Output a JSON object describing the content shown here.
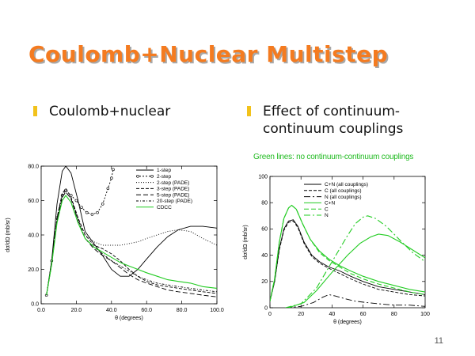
{
  "slide": {
    "title": "Coulomb+Nuclear Multistep",
    "bullet_left": "Coulomb+nuclear",
    "bullet_right": "Effect of continuum-continuum couplings",
    "note": "Green lines: no continuum-continuum couplings",
    "page_number": "11",
    "colors": {
      "title": "#f47b20",
      "bullet": "#f2c21b",
      "green": "#22cc22"
    }
  },
  "chart_data": [
    {
      "type": "line",
      "xlabel": "θ (degrees)",
      "ylabel": "dσ/dΩ (mb/sr)",
      "xlim": [
        0,
        100
      ],
      "ylim": [
        0,
        80
      ],
      "xticks": [
        "0.0",
        "20.0",
        "40.0",
        "60.0",
        "80.0",
        "100.0"
      ],
      "yticks": [
        "0.0",
        "20.0",
        "40.0",
        "60.0",
        "80.0"
      ],
      "series": [
        {
          "name": "1-step",
          "color": "#000000",
          "dash": "",
          "points": [
            [
              3,
              5
            ],
            [
              6,
              25
            ],
            [
              9,
              58
            ],
            [
              12,
              77
            ],
            [
              14,
              80
            ],
            [
              17,
              76
            ],
            [
              21,
              60
            ],
            [
              25,
              42
            ],
            [
              30,
              35
            ],
            [
              35,
              28
            ],
            [
              40,
              20
            ],
            [
              45,
              16
            ],
            [
              50,
              16
            ],
            [
              55,
              20
            ],
            [
              60,
              26
            ],
            [
              66,
              33
            ],
            [
              72,
              39
            ],
            [
              78,
              43
            ],
            [
              85,
              45
            ],
            [
              92,
              45
            ],
            [
              100,
              44
            ]
          ]
        },
        {
          "name": "2-step",
          "color": "#000000",
          "dash": "2,2",
          "markers": true,
          "points": [
            [
              3,
              5
            ],
            [
              6,
              25
            ],
            [
              9,
              50
            ],
            [
              12,
              63
            ],
            [
              14,
              66
            ],
            [
              17,
              63
            ],
            [
              20,
              60
            ],
            [
              23,
              56
            ],
            [
              26,
              53
            ],
            [
              29,
              52
            ],
            [
              32,
              53
            ],
            [
              35,
              58
            ],
            [
              38,
              67
            ],
            [
              40,
              73
            ],
            [
              41,
              78
            ]
          ]
        },
        {
          "name": "2-step (PADE)",
          "color": "#000000",
          "dash": "1,2",
          "points": [
            [
              3,
              5
            ],
            [
              6,
              24
            ],
            [
              9,
              50
            ],
            [
              12,
              64
            ],
            [
              14,
              67
            ],
            [
              17,
              62
            ],
            [
              21,
              50
            ],
            [
              25,
              40
            ],
            [
              30,
              36
            ],
            [
              35,
              34
            ],
            [
              40,
              34
            ],
            [
              45,
              34
            ],
            [
              50,
              35
            ],
            [
              55,
              36
            ],
            [
              60,
              38
            ],
            [
              66,
              40
            ],
            [
              72,
              42
            ],
            [
              78,
              43
            ],
            [
              85,
              42
            ],
            [
              92,
              38
            ],
            [
              100,
              34
            ]
          ]
        },
        {
          "name": "3-step (PADE)",
          "color": "#000000",
          "dash": "4,2",
          "points": [
            [
              3,
              5
            ],
            [
              6,
              24
            ],
            [
              9,
              50
            ],
            [
              12,
              64
            ],
            [
              14,
              67
            ],
            [
              17,
              62
            ],
            [
              21,
              50
            ],
            [
              25,
              40
            ],
            [
              30,
              34
            ],
            [
              35,
              32
            ],
            [
              40,
              29
            ],
            [
              45,
              25
            ],
            [
              50,
              20
            ],
            [
              55,
              16
            ],
            [
              60,
              13
            ],
            [
              66,
              11
            ],
            [
              72,
              10
            ],
            [
              78,
              9
            ],
            [
              85,
              8
            ],
            [
              92,
              7
            ],
            [
              100,
              6
            ]
          ]
        },
        {
          "name": "5-step (PADE)",
          "color": "#000000",
          "dash": "6,3",
          "points": [
            [
              3,
              5
            ],
            [
              6,
              23
            ],
            [
              9,
              48
            ],
            [
              12,
              62
            ],
            [
              14,
              65
            ],
            [
              17,
              61
            ],
            [
              21,
              48
            ],
            [
              25,
              38
            ],
            [
              30,
              32
            ],
            [
              35,
              28
            ],
            [
              40,
              25
            ],
            [
              45,
              21
            ],
            [
              50,
              17
            ],
            [
              55,
              14
            ],
            [
              60,
              12
            ],
            [
              66,
              10
            ],
            [
              72,
              8
            ],
            [
              78,
              7
            ],
            [
              85,
              6
            ],
            [
              92,
              5
            ],
            [
              100,
              4
            ]
          ]
        },
        {
          "name": "20-step (PADE)",
          "color": "#000000",
          "dash": "3,2,1,2",
          "points": [
            [
              3,
              5
            ],
            [
              6,
              23
            ],
            [
              9,
              48
            ],
            [
              12,
              62
            ],
            [
              14,
              65
            ],
            [
              17,
              61
            ],
            [
              21,
              49
            ],
            [
              25,
              38
            ],
            [
              30,
              33
            ],
            [
              35,
              29
            ],
            [
              40,
              25
            ],
            [
              45,
              22
            ],
            [
              50,
              19
            ],
            [
              55,
              16
            ],
            [
              60,
              14
            ],
            [
              66,
              12
            ],
            [
              72,
              11
            ],
            [
              78,
              10
            ],
            [
              85,
              9
            ],
            [
              92,
              8
            ],
            [
              100,
              7
            ]
          ]
        },
        {
          "name": "CDCC",
          "color": "#22cc22",
          "dash": "",
          "points": [
            [
              3,
              5
            ],
            [
              6,
              23
            ],
            [
              9,
              47
            ],
            [
              12,
              60
            ],
            [
              14,
              63
            ],
            [
              17,
              59
            ],
            [
              21,
              47
            ],
            [
              25,
              38
            ],
            [
              30,
              33
            ],
            [
              35,
              30
            ],
            [
              40,
              27
            ],
            [
              45,
              24
            ],
            [
              50,
              22
            ],
            [
              55,
              20
            ],
            [
              60,
              18
            ],
            [
              66,
              16
            ],
            [
              72,
              14
            ],
            [
              78,
              13
            ],
            [
              85,
              12
            ],
            [
              92,
              10
            ],
            [
              100,
              9
            ]
          ]
        }
      ]
    },
    {
      "type": "line",
      "xlabel": "θ (degrees)",
      "ylabel": "dσ/dΩ (mb/sr)",
      "xlim": [
        0,
        100
      ],
      "ylim": [
        0,
        100
      ],
      "xticks": [
        "0",
        "20",
        "40",
        "60",
        "80",
        "100"
      ],
      "yticks": [
        "0",
        "20",
        "40",
        "60",
        "80",
        "100"
      ],
      "series": [
        {
          "name": "C+N (all couplings)",
          "color": "#000000",
          "dash": "",
          "points": [
            [
              0,
              5
            ],
            [
              3,
              20
            ],
            [
              6,
              45
            ],
            [
              9,
              60
            ],
            [
              12,
              66
            ],
            [
              15,
              67
            ],
            [
              18,
              62
            ],
            [
              22,
              50
            ],
            [
              27,
              40
            ],
            [
              32,
              35
            ],
            [
              38,
              31
            ],
            [
              45,
              28
            ],
            [
              52,
              24
            ],
            [
              60,
              20
            ],
            [
              70,
              16
            ],
            [
              80,
              14
            ],
            [
              90,
              12
            ],
            [
              100,
              10
            ]
          ]
        },
        {
          "name": "C (all couplings)",
          "color": "#000000",
          "dash": "4,2",
          "points": [
            [
              0,
              5
            ],
            [
              3,
              20
            ],
            [
              6,
              44
            ],
            [
              9,
              59
            ],
            [
              12,
              65
            ],
            [
              15,
              66
            ],
            [
              18,
              61
            ],
            [
              22,
              49
            ],
            [
              27,
              39
            ],
            [
              32,
              34
            ],
            [
              38,
              30
            ],
            [
              45,
              26
            ],
            [
              52,
              22
            ],
            [
              60,
              18
            ],
            [
              70,
              14
            ],
            [
              80,
              12
            ],
            [
              90,
              10
            ],
            [
              100,
              9
            ]
          ]
        },
        {
          "name": "N (all couplings)",
          "color": "#000000",
          "dash": "8,3,2,3",
          "points": [
            [
              10,
              0
            ],
            [
              20,
              1
            ],
            [
              28,
              4
            ],
            [
              34,
              8
            ],
            [
              38,
              10
            ],
            [
              42,
              9
            ],
            [
              48,
              7
            ],
            [
              55,
              5
            ],
            [
              62,
              4
            ],
            [
              70,
              3
            ],
            [
              80,
              2
            ],
            [
              90,
              2
            ],
            [
              100,
              1
            ]
          ]
        },
        {
          "name": "C+N",
          "color": "#22cc22",
          "dash": "",
          "points": [
            [
              0,
              5
            ],
            [
              3,
              22
            ],
            [
              6,
              50
            ],
            [
              9,
              68
            ],
            [
              12,
              76
            ],
            [
              14,
              78
            ],
            [
              17,
              75
            ],
            [
              21,
              64
            ],
            [
              26,
              52
            ],
            [
              32,
              43
            ],
            [
              38,
              37
            ],
            [
              45,
              32
            ],
            [
              52,
              28
            ],
            [
              60,
              24
            ],
            [
              70,
              20
            ],
            [
              80,
              17
            ],
            [
              90,
              14
            ],
            [
              100,
              12
            ]
          ]
        },
        {
          "name": "C",
          "color": "#22cc22",
          "dash": "6,3",
          "points": [
            [
              0,
              5
            ],
            [
              3,
              22
            ],
            [
              6,
              50
            ],
            [
              9,
              68
            ],
            [
              12,
              76
            ],
            [
              14,
              78
            ],
            [
              17,
              75
            ],
            [
              21,
              64
            ],
            [
              26,
              52
            ],
            [
              32,
              42
            ],
            [
              38,
              36
            ],
            [
              45,
              31
            ],
            [
              52,
              26
            ],
            [
              60,
              22
            ],
            [
              70,
              18
            ],
            [
              80,
              15
            ],
            [
              90,
              12
            ],
            [
              100,
              10
            ]
          ]
        },
        {
          "name": "N",
          "color": "#22cc22",
          "dash": "8,3,2,3",
          "points": [
            [
              10,
              0
            ],
            [
              20,
              3
            ],
            [
              30,
              15
            ],
            [
              40,
              35
            ],
            [
              50,
              55
            ],
            [
              55,
              64
            ],
            [
              60,
              69
            ],
            [
              63,
              70
            ],
            [
              68,
              68
            ],
            [
              75,
              62
            ],
            [
              85,
              50
            ],
            [
              92,
              42
            ],
            [
              100,
              35
            ]
          ]
        },
        {
          "name": "",
          "color": "#22cc22",
          "dash": "",
          "points": [
            [
              12,
              0
            ],
            [
              22,
              4
            ],
            [
              30,
              13
            ],
            [
              40,
              27
            ],
            [
              50,
              40
            ],
            [
              58,
              49
            ],
            [
              65,
              54
            ],
            [
              70,
              56
            ],
            [
              76,
              55
            ],
            [
              84,
              50
            ],
            [
              92,
              44
            ],
            [
              100,
              38
            ]
          ]
        }
      ]
    }
  ]
}
